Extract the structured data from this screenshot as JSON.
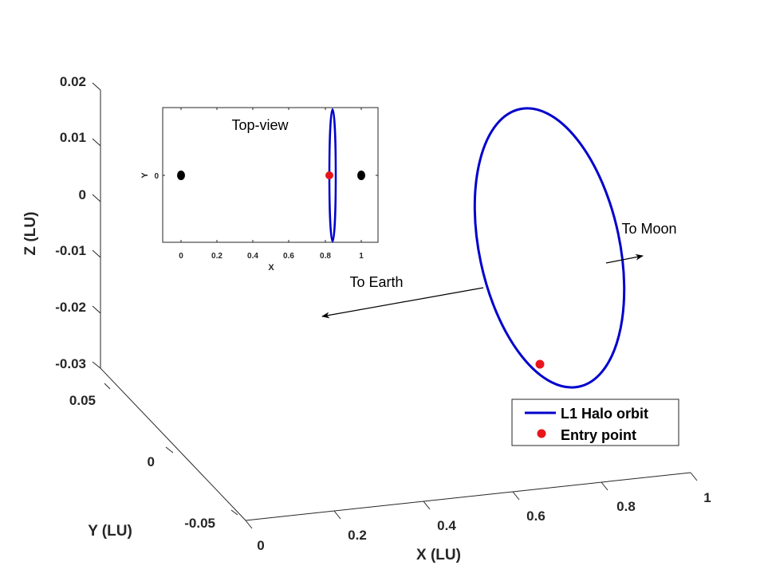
{
  "chart_data": [
    {
      "type": "line",
      "projection": "3d",
      "xlabel": "X (LU)",
      "ylabel": "Y (LU)",
      "zlabel": "Z (LU)",
      "x_ticks": [
        "0",
        "0.2",
        "0.4",
        "0.6",
        "0.8",
        "1"
      ],
      "y_ticks": [
        "-0.05",
        "0",
        "0.05"
      ],
      "z_ticks": [
        "-0.03",
        "-0.02",
        "-0.01",
        "0",
        "0.01",
        "0.02"
      ],
      "xlim": [
        0,
        1
      ],
      "ylim": [
        -0.05,
        0.05
      ],
      "zlim": [
        -0.03,
        0.02
      ],
      "grid": false,
      "series": [
        {
          "name": "L1 Halo orbit",
          "color": "#0000cc",
          "kind": "closed-curve",
          "center": {
            "x": 0.836,
            "y": 0.0,
            "z": -0.004
          },
          "semi_axis_y": 0.045,
          "semi_axis_z": 0.0215
        },
        {
          "name": "Entry point",
          "color": "#e8161b",
          "kind": "marker",
          "points": [
            {
              "x": 0.82,
              "y": 0.0,
              "z": -0.025
            }
          ]
        }
      ],
      "legend": {
        "position": "lower-right",
        "entries": [
          "L1 Halo orbit",
          "Entry point"
        ]
      },
      "annotations": [
        {
          "text": "To Earth",
          "direction": "toward -x"
        },
        {
          "text": "To Moon",
          "direction": "toward +x"
        }
      ]
    },
    {
      "type": "scatter",
      "title": "Top-view",
      "xlabel": "X",
      "ylabel": "Y",
      "x_ticks": [
        "0",
        "0.2",
        "0.4",
        "0.6",
        "0.8",
        "1"
      ],
      "y_ticks": [
        "0"
      ],
      "xlim": [
        -0.1,
        1.1
      ],
      "series": [
        {
          "name": "Earth",
          "color": "#000000",
          "points": [
            {
              "x": 0.0,
              "y": 0.0
            }
          ]
        },
        {
          "name": "Moon",
          "color": "#000000",
          "points": [
            {
              "x": 1.0,
              "y": 0.0
            }
          ]
        },
        {
          "name": "L1 Halo orbit",
          "color": "#0000cc",
          "kind": "closed-curve",
          "center_x": 0.84,
          "width": 0.03
        },
        {
          "name": "Entry point",
          "color": "#e8161b",
          "points": [
            {
              "x": 0.82,
              "y": 0.0
            }
          ]
        }
      ]
    }
  ]
}
